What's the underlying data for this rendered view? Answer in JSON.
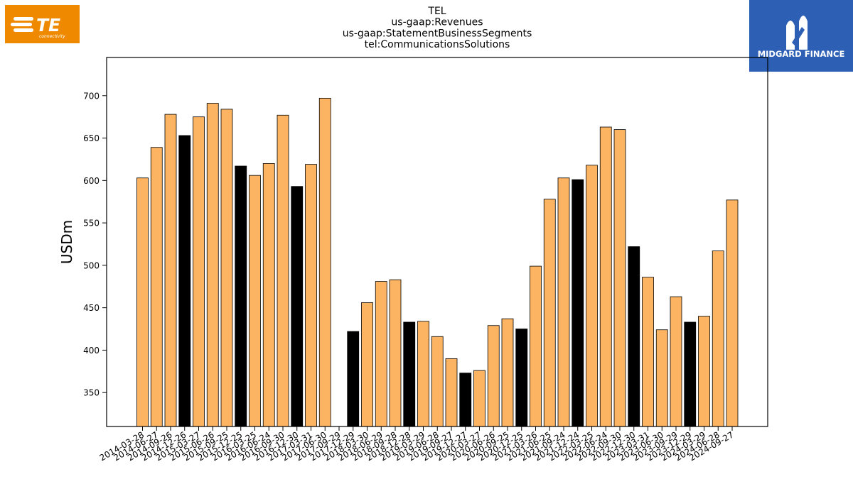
{
  "logos": {
    "left": {
      "text": "TE",
      "subtext": "connectivity",
      "color": "#ef8a00"
    },
    "right": {
      "text": "MIDGARD FINANCE",
      "color": "#2d5fb4"
    }
  },
  "colors": {
    "bar": "#fdb462",
    "highlight": "#000000",
    "edge": "#000000"
  },
  "chart_data": {
    "type": "bar",
    "title": [
      "TEL",
      "us-gaap:Revenues",
      "us-gaap:StatementBusinessSegments",
      "tel:CommunicationsSolutions"
    ],
    "xlabel": "",
    "ylabel": "USDm",
    "ylim": [
      310,
      745
    ],
    "yticks": [
      350,
      400,
      450,
      500,
      550,
      600,
      650,
      700
    ],
    "grid": false,
    "categories": [
      "2014-03-28",
      "2014-06-27",
      "2014-09-26",
      "2014-12-26",
      "2015-03-27",
      "2015-06-26",
      "2015-09-25",
      "2015-12-25",
      "2016-03-25",
      "2016-06-24",
      "2016-09-30",
      "2016-12-30",
      "2017-03-31",
      "2017-06-30",
      "2017-09-29",
      "2017-12-29",
      "2018-03-30",
      "2018-06-29",
      "2018-09-28",
      "2018-12-28",
      "2019-03-29",
      "2019-06-28",
      "2019-09-27",
      "2019-12-27",
      "2020-03-27",
      "2020-06-26",
      "2020-09-25",
      "2020-12-25",
      "2021-03-26",
      "2021-06-25",
      "2021-09-24",
      "2021-12-24",
      "2022-03-25",
      "2022-06-24",
      "2022-09-30",
      "2022-12-30",
      "2023-03-31",
      "2023-06-30",
      "2023-09-29",
      "2023-12-29",
      "2024-03-29",
      "2024-06-28",
      "2024-09-27"
    ],
    "values": [
      603,
      639,
      678,
      653,
      675,
      691,
      684,
      617,
      606,
      620,
      677,
      593,
      619,
      697,
      null,
      422,
      456,
      481,
      483,
      433,
      434,
      416,
      390,
      373,
      376,
      429,
      437,
      425,
      499,
      578,
      603,
      601,
      618,
      663,
      660,
      522,
      486,
      424,
      463,
      433,
      440,
      517,
      577
    ],
    "highlight": [
      false,
      false,
      false,
      true,
      false,
      false,
      false,
      true,
      false,
      false,
      false,
      true,
      false,
      false,
      false,
      true,
      false,
      false,
      false,
      true,
      false,
      false,
      false,
      true,
      false,
      false,
      false,
      true,
      false,
      false,
      false,
      true,
      false,
      false,
      false,
      true,
      false,
      false,
      false,
      true,
      false,
      false,
      false
    ]
  }
}
